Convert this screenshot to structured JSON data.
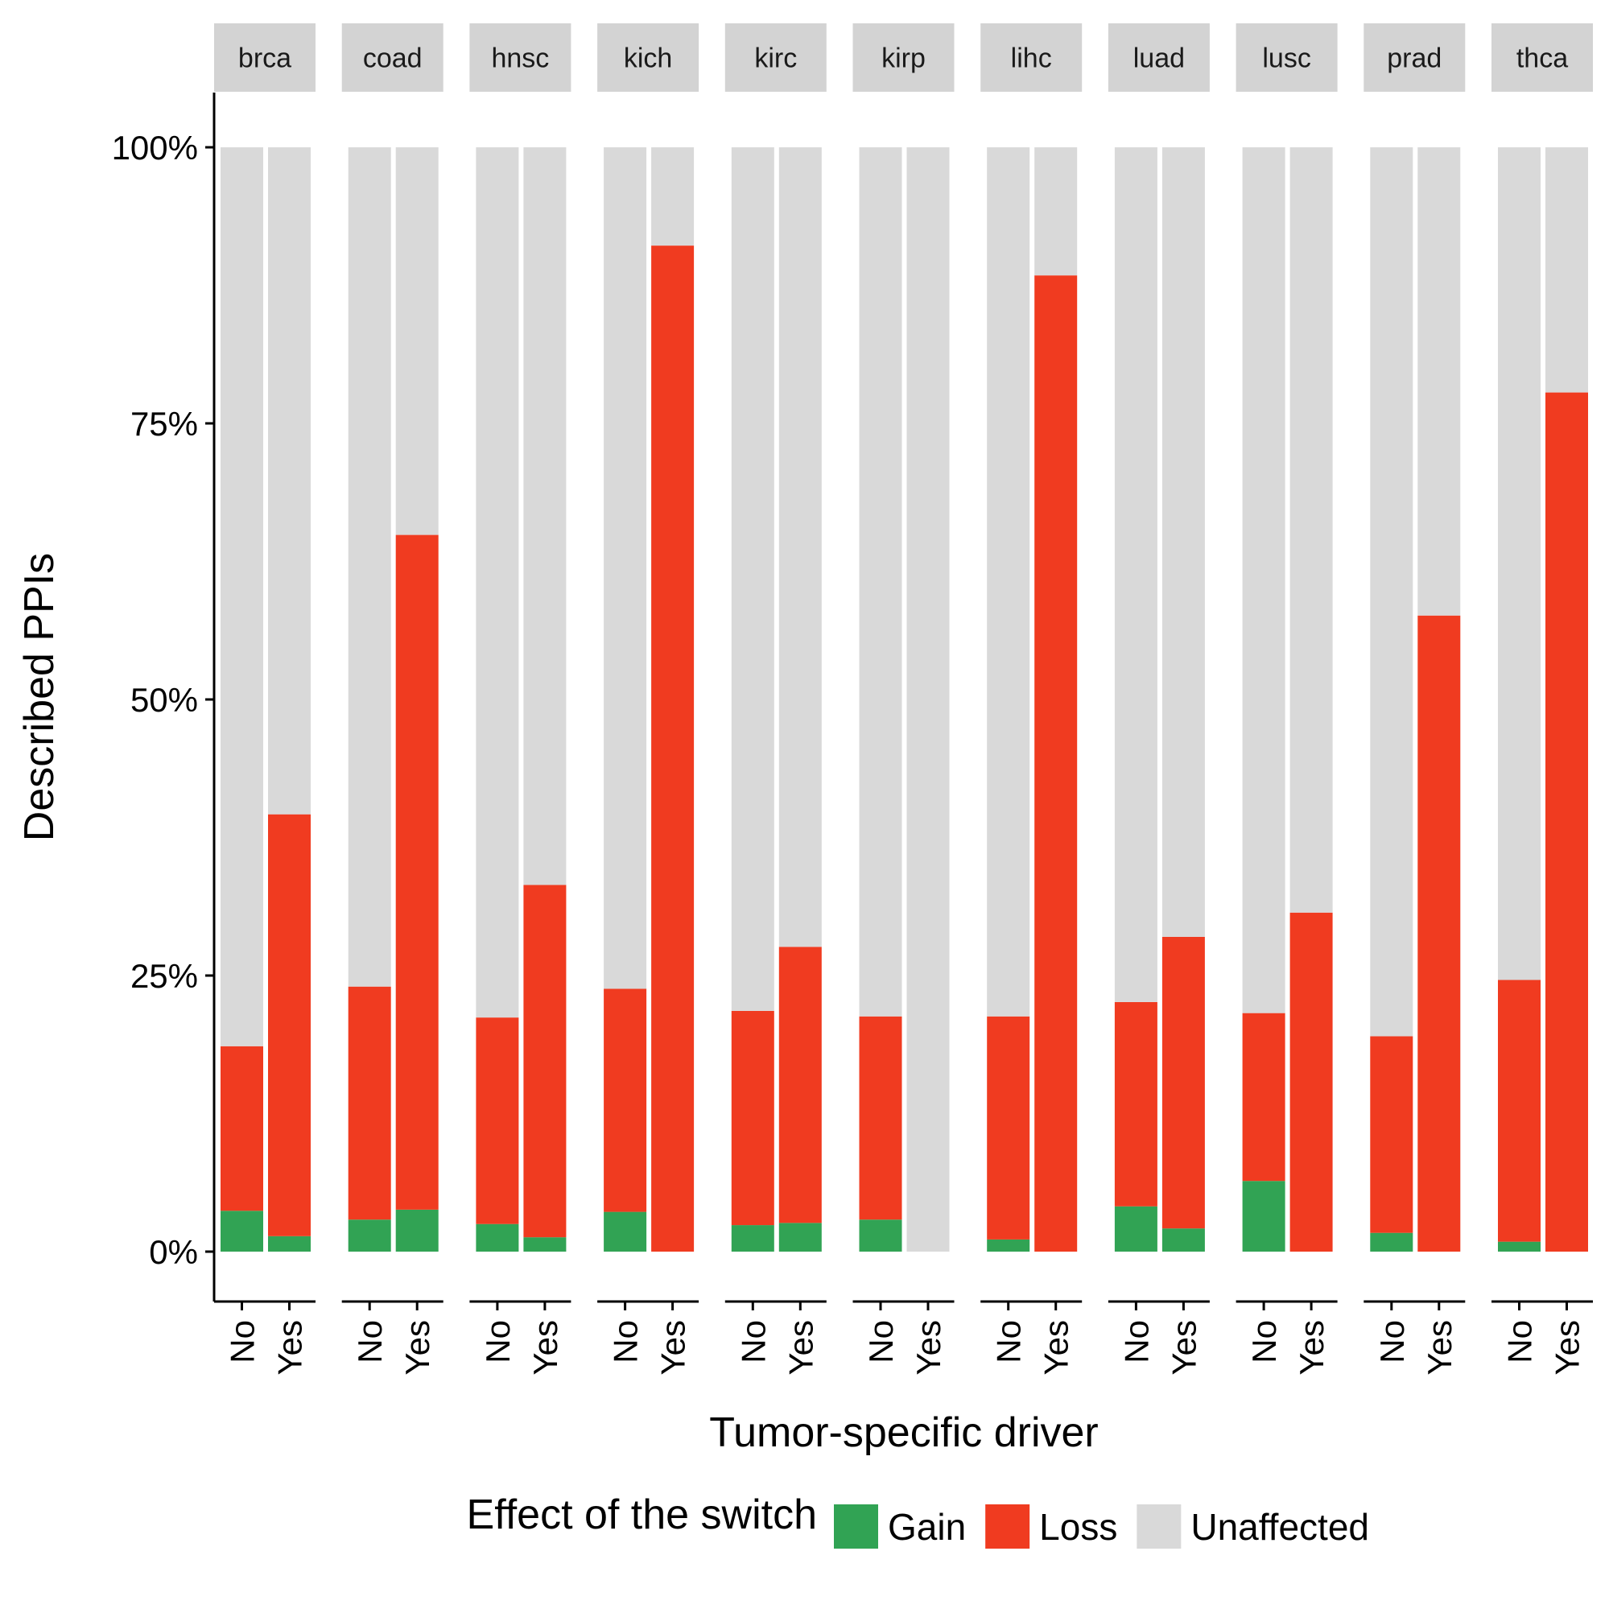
{
  "chart_data": {
    "type": "bar",
    "stacked": true,
    "facet_variable": "tumor type",
    "facets": [
      "brca",
      "coad",
      "hnsc",
      "kich",
      "kirc",
      "kirp",
      "lihc",
      "luad",
      "lusc",
      "prad",
      "thca"
    ],
    "categories": [
      "No",
      "Yes"
    ],
    "xlabel": "Tumor-specific driver",
    "ylabel": "Described PPIs",
    "ylim": [
      0,
      1
    ],
    "yticks": [
      0,
      0.25,
      0.5,
      0.75,
      1.0
    ],
    "ytick_labels": [
      "0%",
      "25%",
      "50%",
      "75%",
      "100%"
    ],
    "grid": false,
    "legend": {
      "title": "Effect of the switch",
      "position": "bottom",
      "entries": [
        "Gain",
        "Loss",
        "Unaffected"
      ]
    },
    "series_colors": {
      "Gain": "#31a354",
      "Loss": "#f03b20",
      "Unaffected": "#d9d9d9"
    },
    "series": [
      {
        "name": "Gain",
        "values": {
          "brca": [
            0.037,
            0.014
          ],
          "coad": [
            0.029,
            0.038
          ],
          "hnsc": [
            0.025,
            0.013
          ],
          "kich": [
            0.036,
            0.0
          ],
          "kirc": [
            0.024,
            0.026
          ],
          "kirp": [
            0.029,
            0.0
          ],
          "lihc": [
            0.011,
            0.0
          ],
          "luad": [
            0.041,
            0.021
          ],
          "lusc": [
            0.064,
            0.0
          ],
          "prad": [
            0.017,
            0.0
          ],
          "thca": [
            0.009,
            0.0
          ]
        }
      },
      {
        "name": "Loss",
        "values": {
          "brca": [
            0.149,
            0.382
          ],
          "coad": [
            0.211,
            0.611
          ],
          "hnsc": [
            0.187,
            0.319
          ],
          "kich": [
            0.202,
            0.911
          ],
          "kirc": [
            0.194,
            0.25
          ],
          "kirp": [
            0.184,
            0.0
          ],
          "lihc": [
            0.202,
            0.884
          ],
          "luad": [
            0.185,
            0.264
          ],
          "lusc": [
            0.152,
            0.307
          ],
          "prad": [
            0.178,
            0.576
          ],
          "thca": [
            0.237,
            0.778
          ]
        }
      },
      {
        "name": "Unaffected",
        "values": {
          "brca": [
            0.814,
            0.604
          ],
          "coad": [
            0.76,
            0.351
          ],
          "hnsc": [
            0.788,
            0.668
          ],
          "kich": [
            0.762,
            0.089
          ],
          "kirc": [
            0.782,
            0.724
          ],
          "kirp": [
            0.787,
            1.0
          ],
          "lihc": [
            0.787,
            0.116
          ],
          "luad": [
            0.774,
            0.715
          ],
          "lusc": [
            0.784,
            0.693
          ],
          "prad": [
            0.805,
            0.424
          ],
          "thca": [
            0.754,
            0.222
          ]
        }
      }
    ]
  }
}
